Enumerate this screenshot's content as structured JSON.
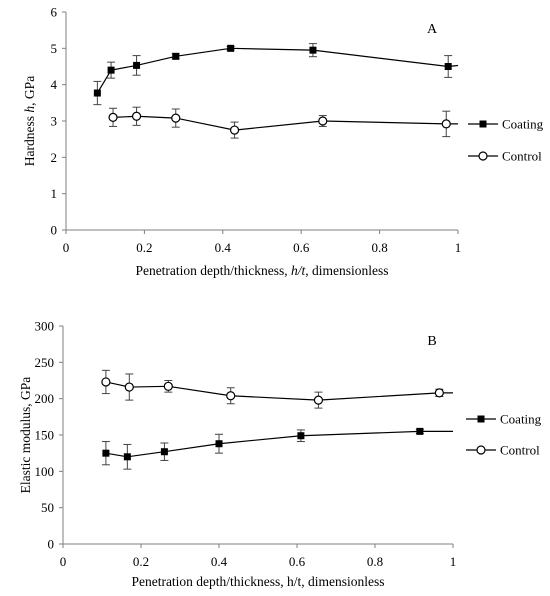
{
  "chart_data": [
    {
      "type": "line",
      "panel_label": "A",
      "xlabel_parts": [
        "Penetration depth/thickness, ",
        "h/t",
        ", dimensionless"
      ],
      "ylabel_parts": [
        "Hardness ",
        "h",
        ", GPa"
      ],
      "xlim": [
        0,
        1
      ],
      "ylim": [
        0,
        6
      ],
      "xticks": [
        "0",
        "0.2",
        "0.4",
        "0.6",
        "0.8",
        "1"
      ],
      "yticks": [
        "0",
        "1",
        "2",
        "3",
        "4",
        "5",
        "6"
      ],
      "grid": false,
      "legend_position": "right",
      "series": [
        {
          "name": "Coating",
          "marker": "filled-square",
          "points": [
            {
              "x": 0.08,
              "y": 3.77,
              "err": 0.32
            },
            {
              "x": 0.115,
              "y": 4.4,
              "err": 0.22
            },
            {
              "x": 0.18,
              "y": 4.53,
              "err": 0.27
            },
            {
              "x": 0.28,
              "y": 4.78,
              "err": 0.07
            },
            {
              "x": 0.42,
              "y": 5.0,
              "err": 0.05
            },
            {
              "x": 0.63,
              "y": 4.95,
              "err": 0.18
            },
            {
              "x": 0.975,
              "y": 4.5,
              "err": 0.3
            }
          ]
        },
        {
          "name": "Control",
          "marker": "open-circle",
          "points": [
            {
              "x": 0.12,
              "y": 3.1,
              "err": 0.25
            },
            {
              "x": 0.18,
              "y": 3.13,
              "err": 0.25
            },
            {
              "x": 0.28,
              "y": 3.08,
              "err": 0.25
            },
            {
              "x": 0.43,
              "y": 2.75,
              "err": 0.22
            },
            {
              "x": 0.655,
              "y": 3.0,
              "err": 0.15
            },
            {
              "x": 0.97,
              "y": 2.92,
              "err": 0.35
            }
          ]
        }
      ]
    },
    {
      "type": "line",
      "panel_label": "B",
      "xlabel_parts": [
        "Penetration depth/thickness, h/t, dimensionless"
      ],
      "ylabel_parts": [
        "Elastic modulus, GPa"
      ],
      "xlim": [
        0,
        1
      ],
      "ylim": [
        0,
        300
      ],
      "xticks": [
        "0",
        "0.2",
        "0.4",
        "0.6",
        "0.8",
        "1"
      ],
      "yticks": [
        "0",
        "50",
        "100",
        "150",
        "200",
        "250",
        "300"
      ],
      "grid": false,
      "legend_position": "right",
      "series": [
        {
          "name": "Coating",
          "marker": "filled-square",
          "points": [
            {
              "x": 0.11,
              "y": 125,
              "err": 16
            },
            {
              "x": 0.165,
              "y": 120,
              "err": 17
            },
            {
              "x": 0.26,
              "y": 127,
              "err": 12
            },
            {
              "x": 0.4,
              "y": 138,
              "err": 13
            },
            {
              "x": 0.61,
              "y": 149,
              "err": 8
            },
            {
              "x": 0.915,
              "y": 155,
              "err": 3
            }
          ]
        },
        {
          "name": "Control",
          "marker": "open-circle",
          "points": [
            {
              "x": 0.11,
              "y": 223,
              "err": 16
            },
            {
              "x": 0.17,
              "y": 216,
              "err": 18
            },
            {
              "x": 0.27,
              "y": 217,
              "err": 8
            },
            {
              "x": 0.43,
              "y": 204,
              "err": 11
            },
            {
              "x": 0.655,
              "y": 198,
              "err": 11
            },
            {
              "x": 0.965,
              "y": 208,
              "err": 5
            }
          ]
        }
      ]
    }
  ]
}
